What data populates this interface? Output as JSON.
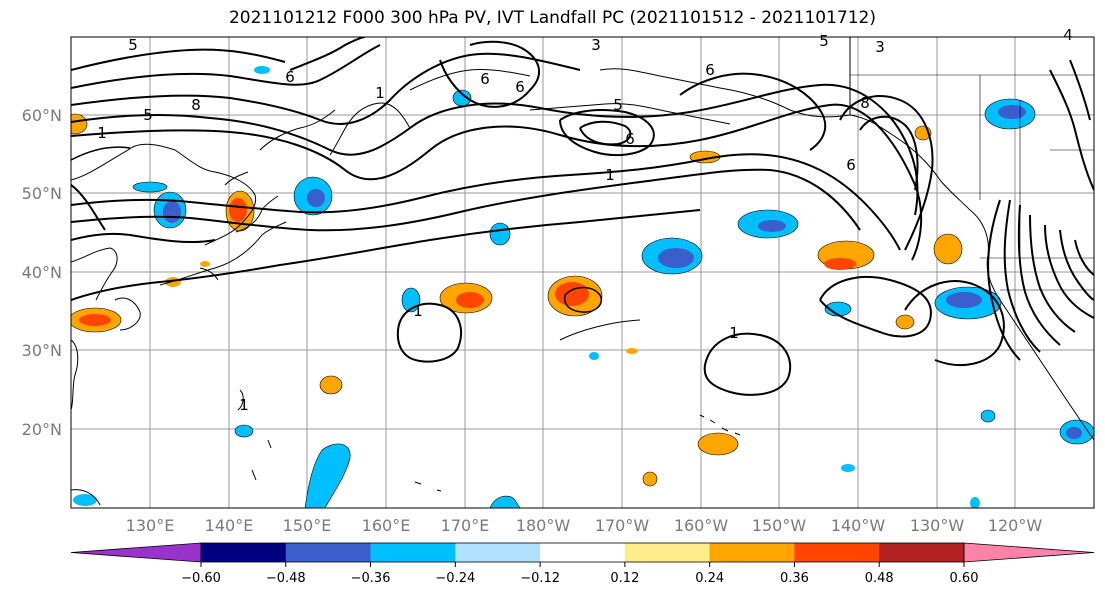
{
  "title": "2021101212 F000 300 hPa PV, IVT Landfall PC (2021101512 - 2021101712)",
  "lat_labels": [
    "60°N",
    "50°N",
    "40°N",
    "30°N",
    "20°N"
  ],
  "lon_labels": [
    "130°E",
    "140°E",
    "150°E",
    "160°E",
    "170°E",
    "180°W",
    "170°W",
    "160°W",
    "150°W",
    "140°W",
    "130°W",
    "120°W"
  ],
  "colorbar": {
    "colors": [
      "#9a32cd",
      "#000080",
      "#3a5fcd",
      "#00bfff",
      "#b0e2ff",
      "#ffffff",
      "#ffec8b",
      "#ffa500",
      "#ff4500",
      "#b22222",
      "#ff82ab"
    ],
    "ticks": [
      "−0.60",
      "−0.48",
      "−0.36",
      "−0.24",
      "−0.12",
      "0.12",
      "0.24",
      "0.36",
      "0.48",
      "0.60"
    ]
  },
  "contour_labels": [
    "5",
    "6",
    "8",
    "5",
    "1",
    "3",
    "6",
    "6",
    "5",
    "6",
    "1",
    "5",
    "3",
    "4",
    "8",
    "6",
    "1",
    "1",
    "1",
    "1",
    "6"
  ]
}
